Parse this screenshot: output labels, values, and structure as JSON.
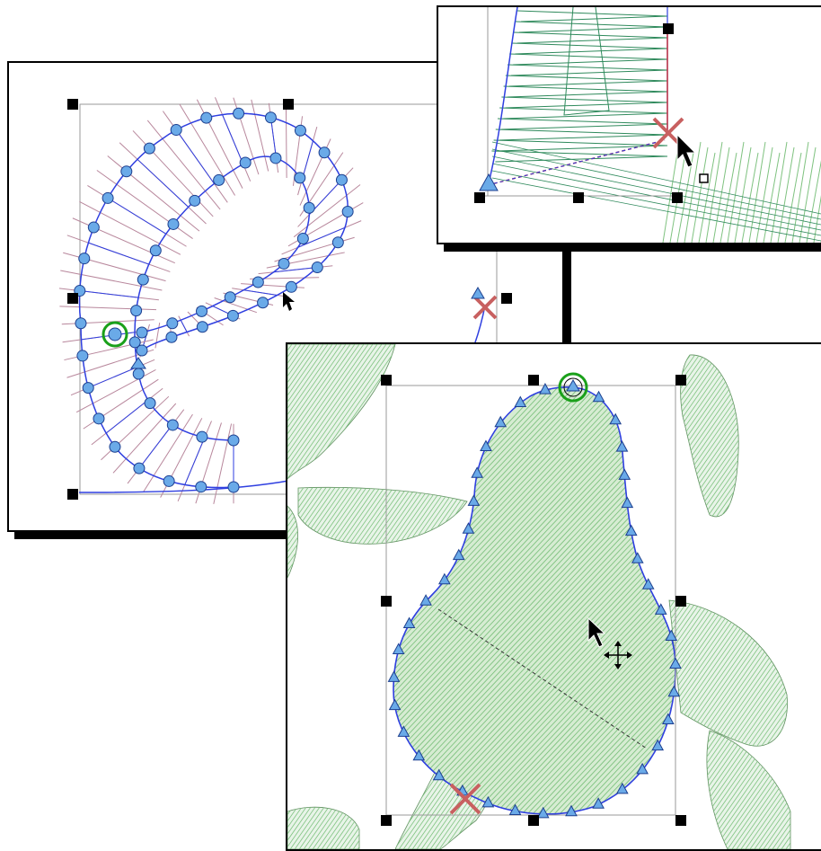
{
  "colors": {
    "outline": "#2f3fe0",
    "node_fill": "#6aaae8",
    "node_stroke": "#1c3f8f",
    "stitch_mauve": "#b8879c",
    "stitch_green": "#7fc280",
    "stitch_dark_green": "#2f8a5c",
    "bounding_box": "#9a9a9a",
    "handle": "#000000",
    "start_marker": "#1aa01a",
    "end_marker": "#c86060",
    "selected_segment": "#c03040"
  },
  "icons": {
    "node": "circle-node-icon",
    "corner_node": "triangle-node-icon",
    "start": "start-point-icon",
    "end": "end-point-icon",
    "cursor": "arrow-cursor-icon",
    "move": "move-cursor-icon",
    "resize_handle": "square-handle-icon"
  }
}
